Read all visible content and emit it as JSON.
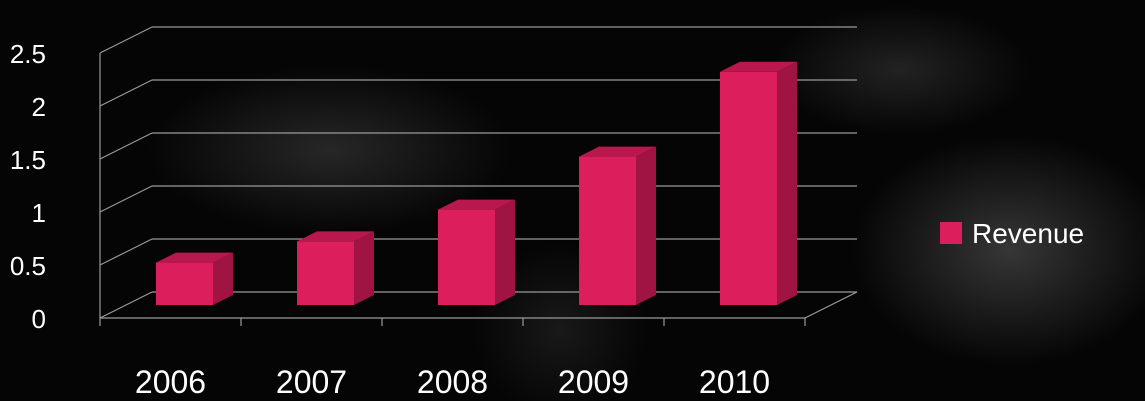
{
  "chart_data": {
    "type": "bar",
    "categories": [
      "2006",
      "2007",
      "2008",
      "2009",
      "2010"
    ],
    "series": [
      {
        "name": "Revenue",
        "values": [
          0.4,
          0.6,
          0.9,
          1.4,
          2.2
        ]
      }
    ],
    "ylim": [
      0,
      2.5
    ],
    "y_ticks": [
      "0",
      "0.5",
      "1",
      "1.5",
      "2",
      "2.5"
    ],
    "grid": true,
    "legend": "right",
    "bar_color": "#dc1e5c",
    "bar_side_color": "#a01443",
    "bar_top_color": "#b8184d",
    "gridline_color": "#9a9a9a",
    "label_color": "#ffffff"
  }
}
